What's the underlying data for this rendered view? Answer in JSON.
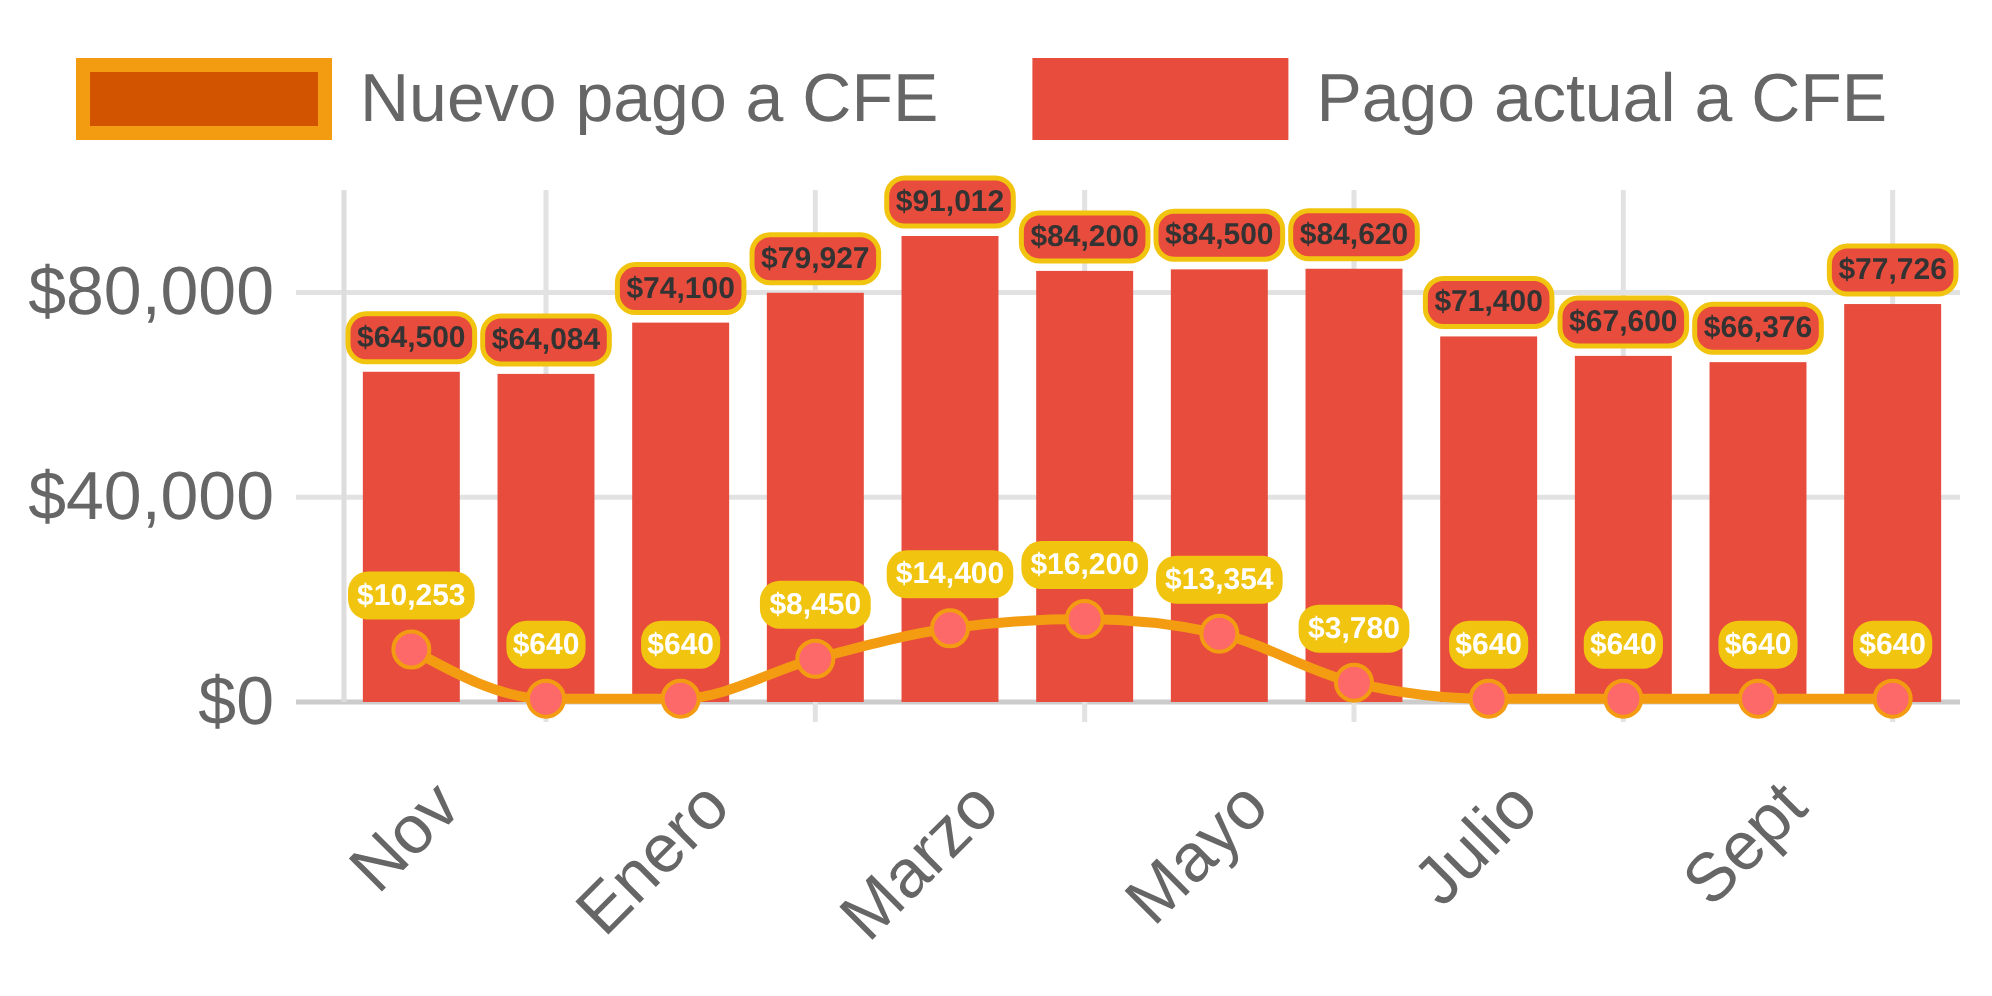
{
  "chart_data": {
    "type": "bar",
    "categories": [
      "Nov",
      null,
      "Enero",
      null,
      "Marzo",
      null,
      "Mayo",
      null,
      "Julio",
      null,
      "Sept",
      null
    ],
    "series": [
      {
        "name": "Nuevo pago a CFE",
        "type": "line",
        "color": "#f39c12",
        "values": [
          10253,
          640,
          640,
          8450,
          14400,
          16200,
          13354,
          3780,
          640,
          640,
          640,
          640
        ],
        "value_labels": [
          "$10,253",
          "$640",
          "$640",
          "$8,450",
          "$14,400",
          "$16,200",
          "$13,354",
          "$3,780",
          "$640",
          "$640",
          "$640",
          "$640"
        ]
      },
      {
        "name": "Pago actual a CFE",
        "color": "#e74c3c",
        "values": [
          64500,
          64084,
          74100,
          79927,
          91012,
          84200,
          84500,
          84620,
          71400,
          67600,
          66376,
          77726
        ],
        "value_labels": [
          "$64,500",
          "$64,084",
          "$74,100",
          "$79,927",
          "$91,012",
          "$84,200",
          "$84,500",
          "$84,620",
          "$71,400",
          "$67,600",
          "$66,376",
          "$77,726"
        ]
      }
    ],
    "ylim": [
      0,
      100000
    ],
    "yticks": [
      {
        "value": 0,
        "label": "$0"
      },
      {
        "value": 40000,
        "label": "$40,000"
      },
      {
        "value": 80000,
        "label": "$80,000"
      }
    ],
    "grid": true,
    "legend": "top",
    "marker": "circle",
    "line_style": "solid"
  }
}
